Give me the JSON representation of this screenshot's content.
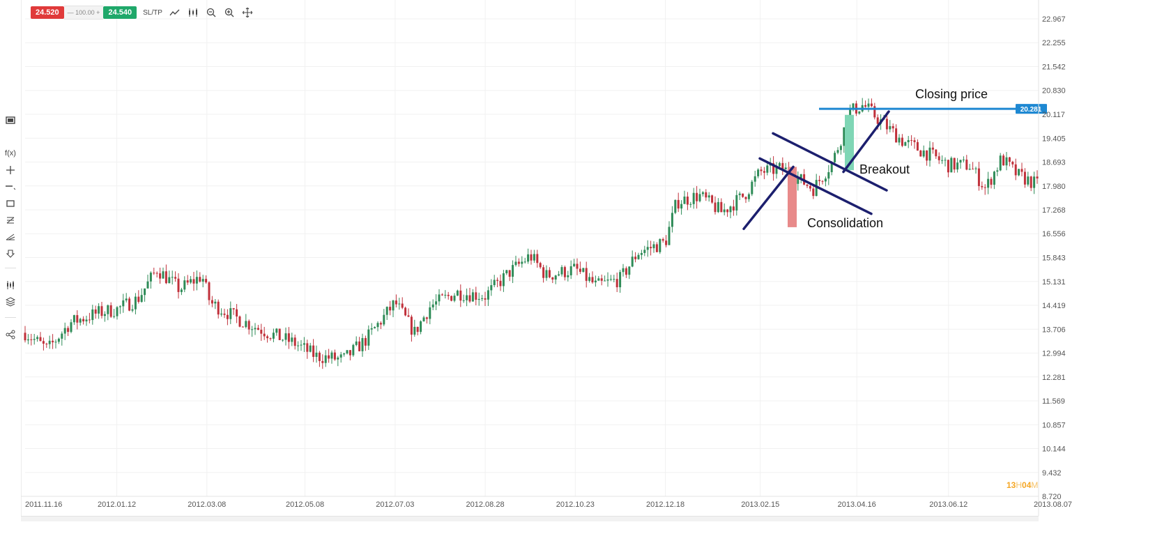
{
  "toolbar": {
    "sell_price": "24.520",
    "quantity": "— 100.00 +",
    "buy_price": "24.540",
    "sltp_label": "SL/TP",
    "icons": [
      "line-chart-icon",
      "candles-icon",
      "zoom-out-icon",
      "zoom-in-icon",
      "crosshair-icon"
    ]
  },
  "left_rail": {
    "icons": [
      "screen-icon",
      "indicator-fx-icon",
      "crosshair-plus-icon",
      "line-tool-icon",
      "rectangle-tool-icon",
      "fibonacci-icon",
      "pitchfork-icon",
      "marker-icon",
      "chart-type-icon",
      "layers-icon",
      "share-icon"
    ],
    "fx_label": "f(x)"
  },
  "chart_data": {
    "type": "candlestick",
    "price_axis_labels": [
      "22.967",
      "22.255",
      "21.542",
      "20.830",
      "20.117",
      "19.405",
      "18.693",
      "17.980",
      "17.268",
      "16.556",
      "15.843",
      "15.131",
      "14.419",
      "13.706",
      "12.994",
      "12.281",
      "11.569",
      "10.857",
      "10.144",
      "9.432",
      "8.720"
    ],
    "date_axis_labels": [
      "2011.11.16",
      "2012.01.12",
      "2012.03.08",
      "2012.05.08",
      "2012.07.03",
      "2012.08.28",
      "2012.10.23",
      "2012.12.18",
      "2013.02.15",
      "2013.04.16",
      "2013.06.12",
      "2013.08.07"
    ],
    "ylim": [
      8.72,
      22.967
    ],
    "series_path": [
      [
        "2011.11.16",
        13.6
      ],
      [
        "2011.11.30",
        13.1
      ],
      [
        "2011.12.14",
        13.9
      ],
      [
        "2012.01.01",
        14.2
      ],
      [
        "2012.01.12",
        14.3
      ],
      [
        "2012.01.25",
        14.6
      ],
      [
        "2012.02.06",
        15.5
      ],
      [
        "2012.02.20",
        14.9
      ],
      [
        "2012.03.05",
        15.3
      ],
      [
        "2012.03.10",
        14.5
      ],
      [
        "2012.03.28",
        14.0
      ],
      [
        "2012.04.15",
        13.6
      ],
      [
        "2012.05.01",
        13.3
      ],
      [
        "2012.05.15",
        12.9
      ],
      [
        "2012.06.01",
        12.8
      ],
      [
        "2012.06.15",
        13.4
      ],
      [
        "2012.07.03",
        14.5
      ],
      [
        "2012.07.15",
        13.6
      ],
      [
        "2012.07.25",
        14.4
      ],
      [
        "2012.08.10",
        14.8
      ],
      [
        "2012.08.28",
        14.7
      ],
      [
        "2012.09.12",
        15.4
      ],
      [
        "2012.09.25",
        15.9
      ],
      [
        "2012.10.05",
        15.3
      ],
      [
        "2012.10.23",
        15.5
      ],
      [
        "2012.11.05",
        15.0
      ],
      [
        "2012.11.20",
        15.2
      ],
      [
        "2012.12.01",
        16.0
      ],
      [
        "2012.12.18",
        16.3
      ],
      [
        "2012.12.25",
        17.5
      ],
      [
        "2013.01.08",
        17.7
      ],
      [
        "2013.01.22",
        17.2
      ],
      [
        "2013.02.05",
        17.7
      ],
      [
        "2013.02.15",
        18.4
      ],
      [
        "2013.03.01",
        18.5
      ],
      [
        "2013.03.20",
        17.9
      ],
      [
        "2013.04.01",
        18.7
      ],
      [
        "2013.04.12",
        20.2
      ],
      [
        "2013.04.20",
        20.4
      ],
      [
        "2013.05.01",
        19.9
      ],
      [
        "2013.05.15",
        19.3
      ],
      [
        "2013.06.01",
        18.9
      ],
      [
        "2013.06.12",
        18.6
      ],
      [
        "2013.06.25",
        18.6
      ],
      [
        "2013.07.05",
        17.9
      ],
      [
        "2013.07.15",
        18.8
      ],
      [
        "2013.07.25",
        18.3
      ],
      [
        "2013.08.07",
        18.0
      ]
    ],
    "up_color": "#2e8b57",
    "down_color": "#c0303a",
    "closing_price": "20.281",
    "closing_price_color": "#1e88d2",
    "trendline_color": "#1c1f6e",
    "consolidation_bar_color": "#e88a8a",
    "breakout_bar_color": "#7fd6b5",
    "annotations": {
      "closing_price": "Closing price",
      "breakout": "Breakout",
      "consolidation": "Consolidation"
    }
  },
  "countdown": {
    "hours": "13",
    "h_unit": "H",
    "minutes": "04",
    "m_unit": "M"
  }
}
